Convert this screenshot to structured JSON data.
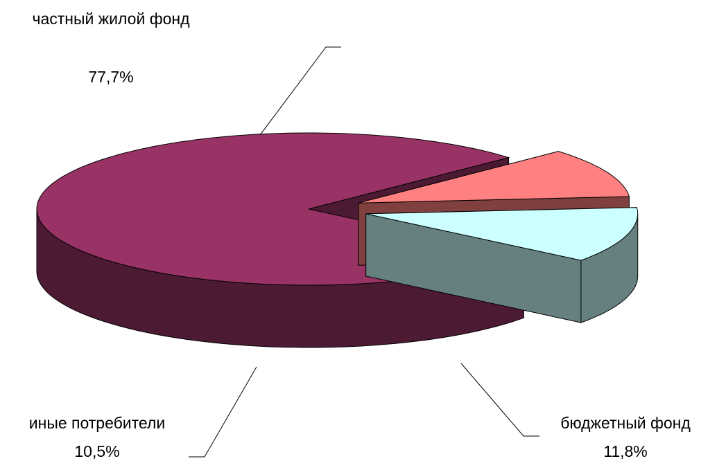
{
  "chart_data": {
    "type": "pie3d",
    "categories": [
      "частный жилой фонд",
      "иные потребители",
      "бюджетный фонд"
    ],
    "values": [
      77.7,
      10.5,
      11.8
    ],
    "value_labels": [
      "77,7%",
      "10,5%",
      "11,8%"
    ],
    "colors": [
      "#993366",
      "#ff8080",
      "#ccffff"
    ]
  }
}
